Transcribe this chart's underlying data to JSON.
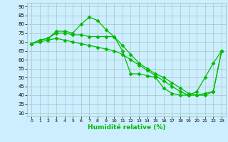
{
  "title": "",
  "xlabel": "Humidité relative (%)",
  "ylabel": "",
  "bg_color": "#cceeff",
  "grid_color": "#aacccc",
  "line_color": "#00bb00",
  "marker": "D",
  "markersize": 2.5,
  "linewidth": 0.9,
  "xlim": [
    -0.5,
    23.5
  ],
  "ylim": [
    28,
    92
  ],
  "yticks": [
    30,
    35,
    40,
    45,
    50,
    55,
    60,
    65,
    70,
    75,
    80,
    85,
    90
  ],
  "xticks": [
    0,
    1,
    2,
    3,
    4,
    5,
    6,
    7,
    8,
    9,
    10,
    11,
    12,
    13,
    14,
    15,
    16,
    17,
    18,
    19,
    20,
    21,
    22,
    23
  ],
  "series": [
    [
      69,
      71,
      72,
      76,
      76,
      75,
      80,
      84,
      82,
      77,
      73,
      65,
      52,
      52,
      51,
      50,
      44,
      41,
      40,
      40,
      42,
      50,
      58,
      65
    ],
    [
      69,
      71,
      72,
      75,
      75,
      74,
      74,
      73,
      73,
      73,
      73,
      68,
      63,
      58,
      55,
      52,
      50,
      47,
      44,
      41,
      40,
      40,
      42,
      65
    ],
    [
      69,
      70,
      71,
      72,
      71,
      70,
      69,
      68,
      67,
      66,
      65,
      63,
      60,
      57,
      54,
      51,
      48,
      45,
      42,
      40,
      40,
      41,
      42,
      65
    ]
  ]
}
